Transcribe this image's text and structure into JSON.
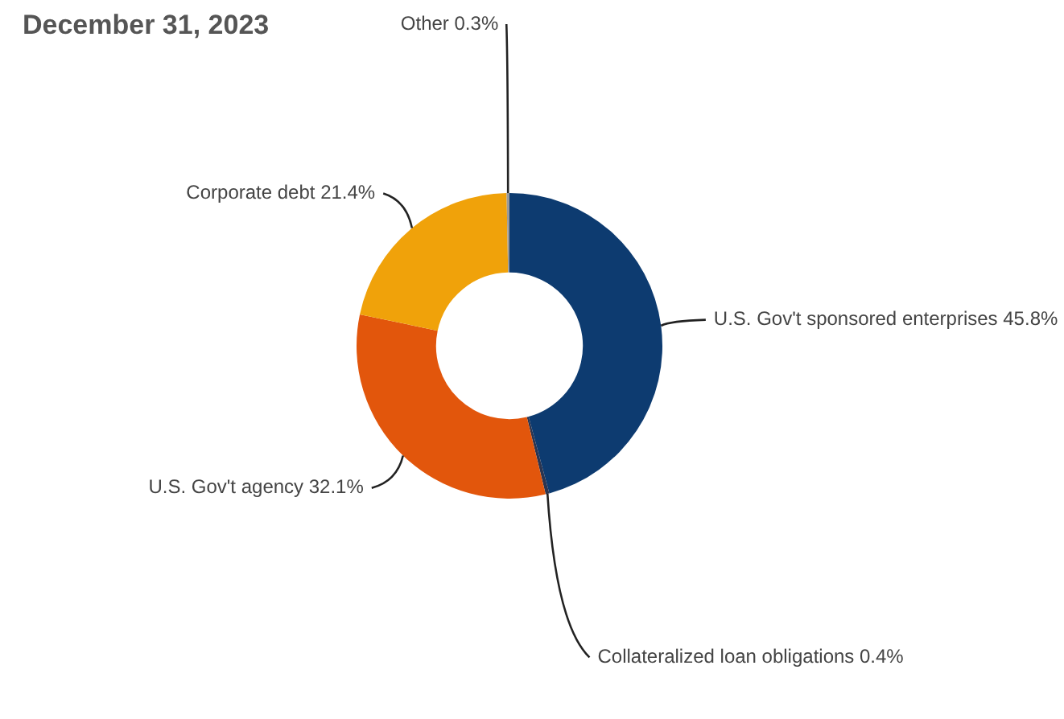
{
  "chart_data": {
    "type": "donut",
    "title": "December 31, 2023",
    "categories": [
      "U.S. Gov't sponsored enterprises",
      "Collateralized loan obligations",
      "U.S. Gov't agency",
      "Corporate debt",
      "Other"
    ],
    "values": [
      45.8,
      0.4,
      32.1,
      21.4,
      0.3
    ],
    "colors": [
      "#0d3b70",
      "#2b3550",
      "#e2560c",
      "#f0a20a",
      "#9a9a9a"
    ],
    "value_labels": [
      "45.8%",
      "0.4%",
      "32.1%",
      "21.4%",
      "0.3%"
    ],
    "legend": false
  }
}
